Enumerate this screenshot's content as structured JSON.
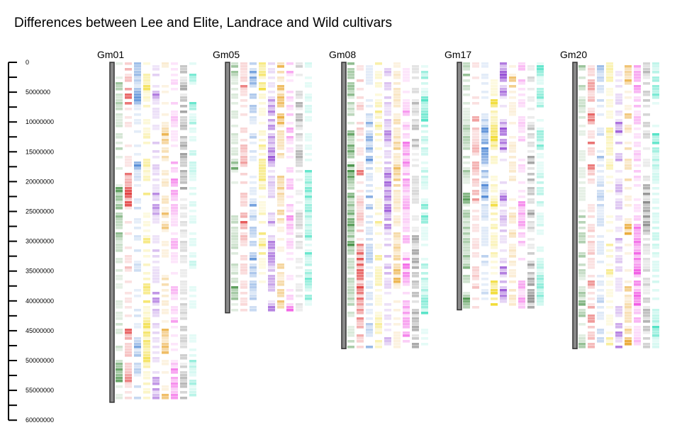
{
  "title": "Differences between Lee and Elite, Landrace and Wild cultivars",
  "chart_data": {
    "type": "heatmap",
    "title": "Differences between Lee and Elite, Landrace and Wild cultivars",
    "ylim": [
      0,
      60000000
    ],
    "yticks": [
      "0",
      "5000000",
      "10000000",
      "15000000",
      "20000000",
      "25000000",
      "30000000",
      "35000000",
      "40000000",
      "45000000",
      "50000000",
      "55000000",
      "60000000"
    ],
    "track_colors": [
      "#3a8a3a",
      "#e03030",
      "#3a7ad0",
      "#f0d820",
      "#8a3ad0",
      "#e8a020",
      "#f040e0",
      "#808080",
      "#40e0c0"
    ],
    "chromosomes": [
      {
        "name": "Gm01",
        "length": 57000000
      },
      {
        "name": "Gm05",
        "length": 42000000
      },
      {
        "name": "Gm08",
        "length": 48000000
      },
      {
        "name": "Gm17",
        "length": 41500000
      },
      {
        "name": "Gm20",
        "length": 48000000
      }
    ]
  }
}
